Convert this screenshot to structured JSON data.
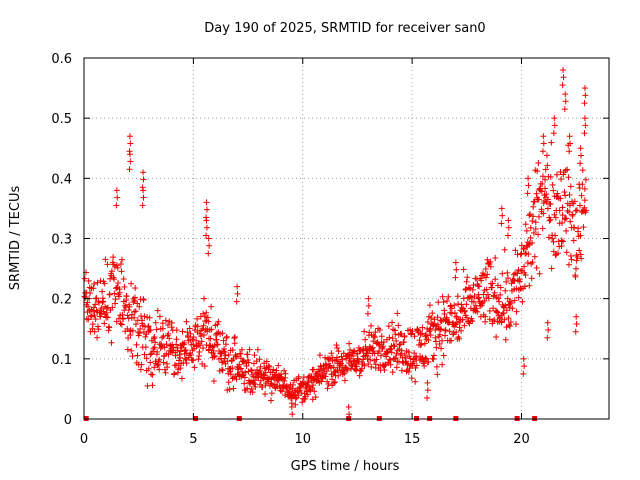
{
  "chart_data": {
    "type": "scatter",
    "title": "Day 190 of 2025, SRMTID for receiver san0",
    "xlabel": "GPS time / hours",
    "ylabel": "SRMTID / TECUs",
    "xlim": [
      0,
      24
    ],
    "ylim": [
      0,
      0.6
    ],
    "x_ticks": [
      0,
      5,
      10,
      15,
      20
    ],
    "x_tick_labels": [
      "0",
      "5",
      "10",
      "15",
      "20"
    ],
    "y_ticks": [
      0,
      0.1,
      0.2,
      0.3,
      0.4,
      0.5,
      0.6
    ],
    "y_tick_labels": [
      "0",
      "0.1",
      "0.2",
      "0.3",
      "0.4",
      "0.5",
      "0.6"
    ],
    "grid": true,
    "marker": "plus",
    "color": "#ee0000",
    "series": [
      {
        "name": "SRMTID",
        "trend": [
          [
            0.0,
            0.2
          ],
          [
            0.5,
            0.18
          ],
          [
            1.0,
            0.2
          ],
          [
            1.5,
            0.22
          ],
          [
            2.0,
            0.18
          ],
          [
            2.5,
            0.15
          ],
          [
            3.0,
            0.13
          ],
          [
            3.5,
            0.12
          ],
          [
            4.0,
            0.12
          ],
          [
            4.5,
            0.11
          ],
          [
            5.0,
            0.12
          ],
          [
            5.5,
            0.15
          ],
          [
            6.0,
            0.12
          ],
          [
            6.5,
            0.1
          ],
          [
            7.0,
            0.08
          ],
          [
            7.5,
            0.08
          ],
          [
            8.0,
            0.075
          ],
          [
            8.5,
            0.07
          ],
          [
            9.0,
            0.06
          ],
          [
            9.5,
            0.05
          ],
          [
            10.0,
            0.05
          ],
          [
            10.5,
            0.06
          ],
          [
            11.0,
            0.08
          ],
          [
            11.5,
            0.09
          ],
          [
            12.0,
            0.09
          ],
          [
            12.5,
            0.1
          ],
          [
            13.0,
            0.11
          ],
          [
            13.5,
            0.12
          ],
          [
            14.0,
            0.12
          ],
          [
            14.5,
            0.12
          ],
          [
            15.0,
            0.11
          ],
          [
            15.5,
            0.12
          ],
          [
            16.0,
            0.14
          ],
          [
            16.5,
            0.16
          ],
          [
            17.0,
            0.16
          ],
          [
            17.5,
            0.18
          ],
          [
            18.0,
            0.2
          ],
          [
            18.5,
            0.21
          ],
          [
            19.0,
            0.2
          ],
          [
            19.5,
            0.2
          ],
          [
            20.0,
            0.24
          ],
          [
            20.5,
            0.3
          ],
          [
            21.0,
            0.38
          ],
          [
            21.5,
            0.35
          ],
          [
            22.0,
            0.36
          ],
          [
            22.5,
            0.3
          ],
          [
            23.0,
            0.4
          ]
        ],
        "spread": [
          [
            0.0,
            0.05
          ],
          [
            2.0,
            0.07
          ],
          [
            4.0,
            0.04
          ],
          [
            6.0,
            0.05
          ],
          [
            8.0,
            0.03
          ],
          [
            10.0,
            0.02
          ],
          [
            12.0,
            0.03
          ],
          [
            14.0,
            0.04
          ],
          [
            16.0,
            0.05
          ],
          [
            18.0,
            0.05
          ],
          [
            20.0,
            0.07
          ],
          [
            21.0,
            0.08
          ],
          [
            23.0,
            0.09
          ]
        ],
        "spikes": [
          [
            2.1,
            0.47
          ],
          [
            2.1,
            0.44
          ],
          [
            2.7,
            0.41
          ],
          [
            2.7,
            0.38
          ],
          [
            1.5,
            0.38
          ],
          [
            5.6,
            0.36
          ],
          [
            5.6,
            0.33
          ],
          [
            5.7,
            0.3
          ],
          [
            7.0,
            0.22
          ],
          [
            13.0,
            0.2
          ],
          [
            17.0,
            0.26
          ],
          [
            19.1,
            0.35
          ],
          [
            19.4,
            0.33
          ],
          [
            20.3,
            0.4
          ],
          [
            21.0,
            0.47
          ],
          [
            21.5,
            0.5
          ],
          [
            21.9,
            0.58
          ],
          [
            22.0,
            0.54
          ],
          [
            22.2,
            0.47
          ],
          [
            22.9,
            0.55
          ],
          [
            22.9,
            0.5
          ],
          [
            22.7,
            0.45
          ],
          [
            21.2,
            0.16
          ],
          [
            22.5,
            0.17
          ],
          [
            20.1,
            0.1
          ],
          [
            12.1,
            0.02
          ],
          [
            9.5,
            0.02
          ],
          [
            15.7,
            0.06
          ]
        ],
        "baseline_markers": [
          0.1,
          5.1,
          7.1,
          12.1,
          13.5,
          15.2,
          15.8,
          17.0,
          19.8,
          20.6
        ]
      }
    ]
  }
}
